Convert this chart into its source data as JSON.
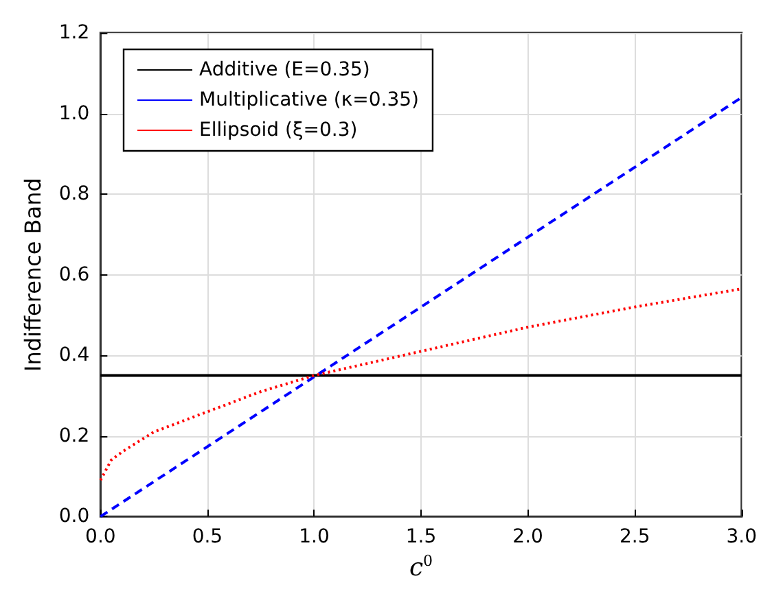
{
  "chart_data": {
    "type": "line",
    "xlabel": "c$^{0}$",
    "ylabel": "Indifference Band",
    "xlim": [
      0,
      3
    ],
    "xticks": [
      {
        "value": 0,
        "label": "0.0"
      },
      0.5,
      {
        "value": 1,
        "label": "1.0"
      },
      1.5,
      {
        "value": 2,
        "label": "2.0"
      },
      2.5,
      {
        "value": 3,
        "label": "3.0"
      }
    ],
    "ylim": [
      0,
      1.2
    ],
    "yticks": [
      {
        "value": 0,
        "label": "0.0"
      },
      0.2,
      0.4,
      0.6,
      0.8,
      {
        "value": 1,
        "label": "1.0"
      },
      1.2
    ],
    "grid": true,
    "legend": "top left",
    "marker": "none",
    "series": [
      {
        "name": "Additive (E=0.35)",
        "color": "#000000",
        "line_style": "solid",
        "x": [
          0,
          3
        ],
        "values": [
          0.35,
          0.35
        ]
      },
      {
        "name": "Multiplicative (κ=0.35)",
        "color": "#0000ff",
        "line_style": "dashed",
        "x": [
          0,
          3
        ],
        "values": [
          0,
          1.04
        ]
      },
      {
        "name": "Ellipsoid (ξ=0.3)",
        "color": "#ff0000",
        "line_style": "dotted",
        "x": [
          0,
          0.05,
          0.1,
          0.25,
          0.5,
          0.75,
          1,
          1.5,
          2,
          2.5,
          3
        ],
        "values": [
          0.09,
          0.14,
          0.16,
          0.21,
          0.26,
          0.31,
          0.35,
          0.41,
          0.47,
          0.52,
          0.565
        ]
      }
    ]
  }
}
